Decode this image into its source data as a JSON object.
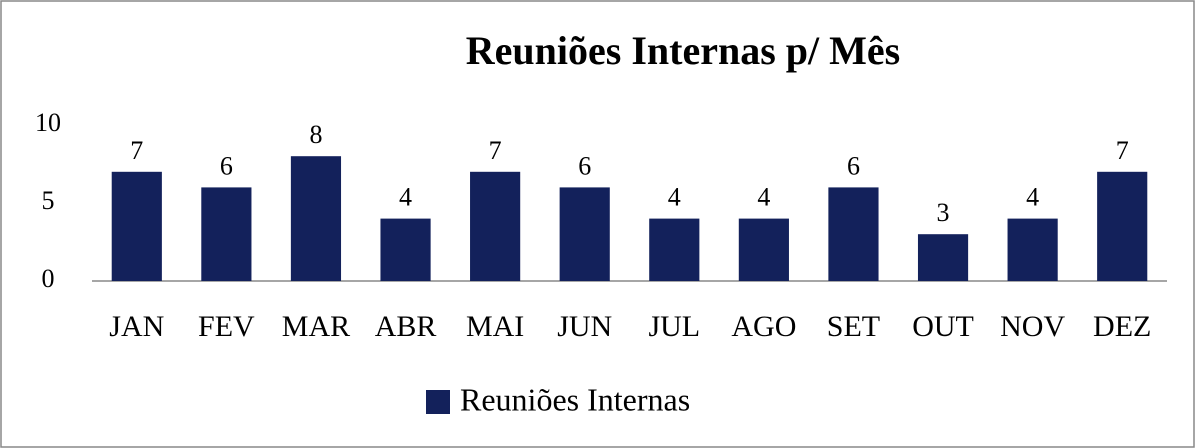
{
  "chart_data": {
    "type": "bar",
    "title": "Reuniões Internas p/ Mês",
    "categories": [
      "JAN",
      "FEV",
      "MAR",
      "ABR",
      "MAI",
      "JUN",
      "JUL",
      "AGO",
      "SET",
      "OUT",
      "NOV",
      "DEZ"
    ],
    "series": [
      {
        "name": "Reuniões Internas",
        "color": "#13215b",
        "values": [
          7,
          6,
          8,
          4,
          7,
          6,
          4,
          4,
          6,
          3,
          4,
          7
        ]
      }
    ],
    "ylim": [
      0,
      10
    ],
    "yticks": [
      0,
      5,
      10
    ],
    "grid": false,
    "legend": "bottom",
    "data_labels": true
  }
}
